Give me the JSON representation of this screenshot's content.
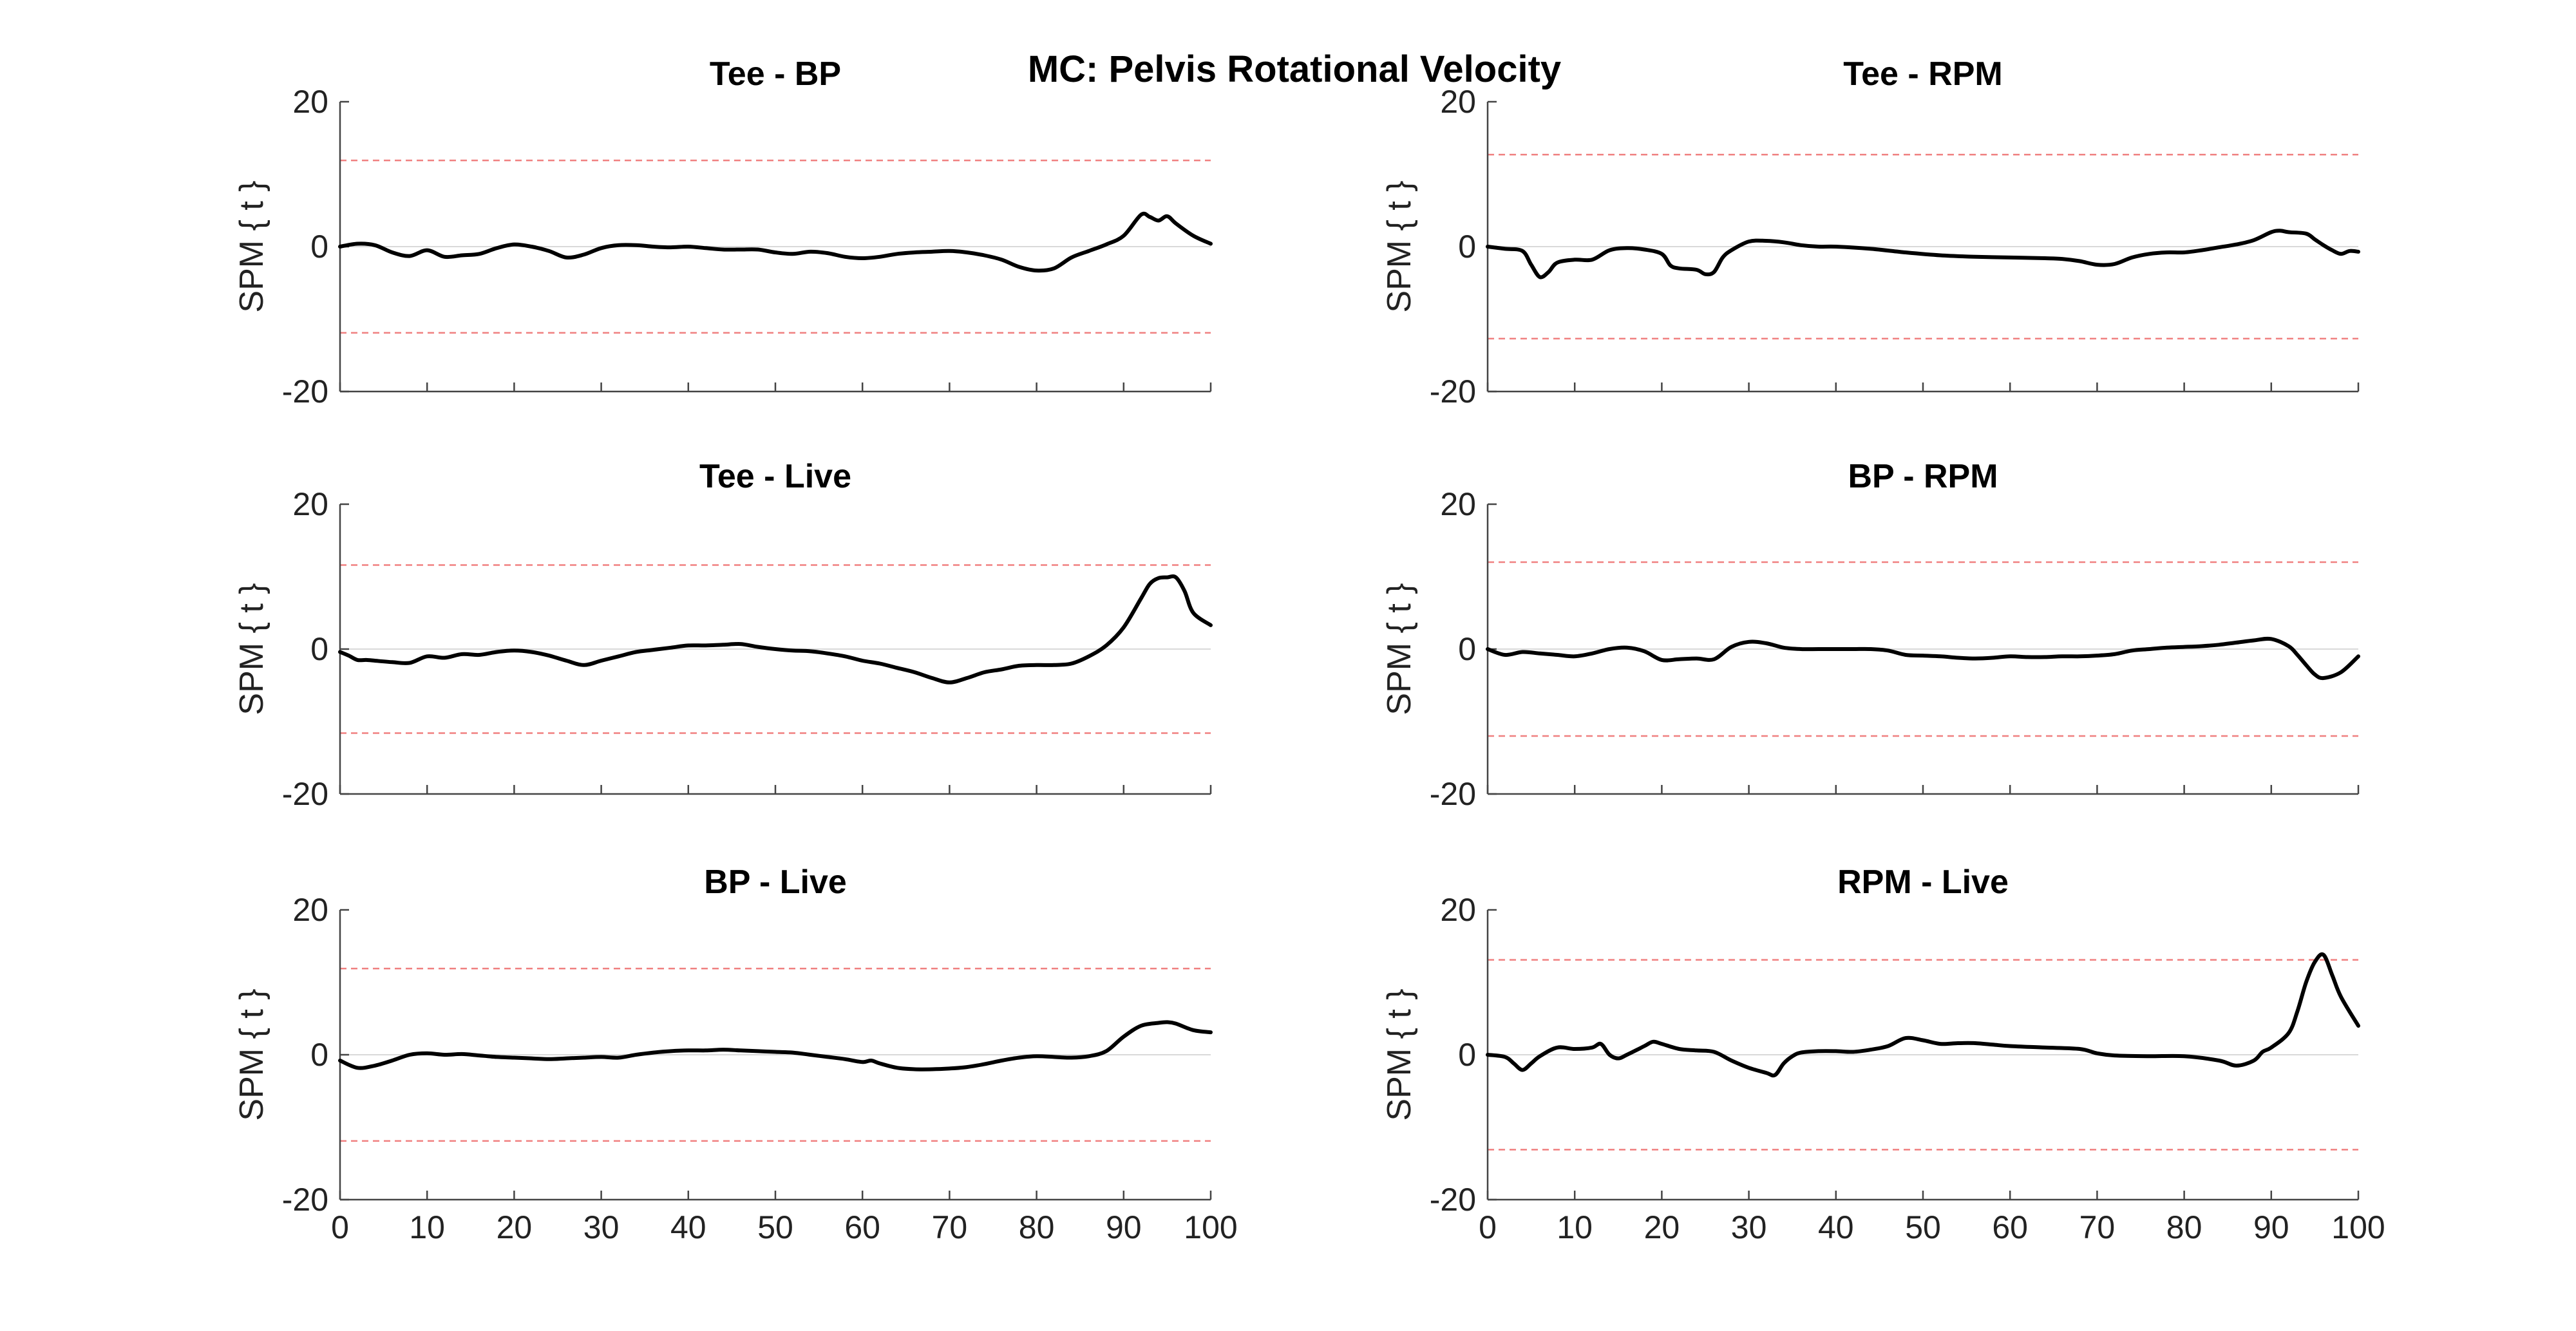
{
  "figure_title": "MC: Pelvis Rotational Velocity",
  "chart_data": [
    {
      "type": "line",
      "title": "Tee - BP",
      "ylabel": "SPM { t }",
      "xlim": [
        0,
        100
      ],
      "ylim": [
        -20,
        20
      ],
      "yticks": [
        -20,
        0,
        20
      ],
      "xticks": [
        0,
        10,
        20,
        30,
        40,
        50,
        60,
        70,
        80,
        90,
        100
      ],
      "show_xtick_labels": false,
      "threshold_upper": 11.9,
      "threshold_lower": -11.9,
      "series": [
        {
          "x": [
            0,
            2,
            4,
            6,
            8,
            10,
            12,
            14,
            16,
            18,
            20,
            22,
            24,
            26,
            28,
            30,
            32,
            34,
            36,
            38,
            40,
            42,
            44,
            46,
            48,
            50,
            52,
            54,
            56,
            58,
            60,
            62,
            64,
            66,
            68,
            70,
            72,
            74,
            76,
            78,
            80,
            82,
            84,
            86,
            88,
            90,
            92,
            93,
            94,
            95,
            96,
            98,
            100
          ],
          "y": [
            0,
            0.4,
            0.2,
            -0.8,
            -1.3,
            -0.5,
            -1.4,
            -1.2,
            -1,
            -0.2,
            0.3,
            0,
            -0.6,
            -1.5,
            -1.1,
            -0.2,
            0.2,
            0.2,
            0,
            -0.1,
            0,
            -0.2,
            -0.4,
            -0.4,
            -0.4,
            -0.8,
            -1,
            -0.7,
            -0.9,
            -1.4,
            -1.6,
            -1.4,
            -1,
            -0.8,
            -0.7,
            -0.6,
            -0.8,
            -1.2,
            -1.8,
            -2.8,
            -3.3,
            -3,
            -1.5,
            -0.6,
            0.3,
            1.5,
            4.4,
            4.1,
            3.6,
            4.2,
            3.2,
            1.5,
            0.4
          ]
        }
      ]
    },
    {
      "type": "line",
      "title": "Tee - RPM",
      "ylabel": "SPM { t }",
      "xlim": [
        0,
        100
      ],
      "ylim": [
        -20,
        20
      ],
      "yticks": [
        -20,
        0,
        20
      ],
      "xticks": [
        0,
        10,
        20,
        30,
        40,
        50,
        60,
        70,
        80,
        90,
        100
      ],
      "show_xtick_labels": false,
      "threshold_upper": 12.7,
      "threshold_lower": -12.7,
      "series": [
        {
          "x": [
            0,
            2,
            4,
            5,
            6,
            7,
            8,
            10,
            12,
            14,
            16,
            18,
            20,
            21,
            22,
            24,
            25,
            26,
            27,
            28,
            30,
            32,
            34,
            36,
            38,
            40,
            44,
            48,
            52,
            56,
            60,
            64,
            66,
            68,
            70,
            72,
            74,
            76,
            78,
            80,
            82,
            84,
            86,
            88,
            90,
            91,
            92,
            94,
            95,
            96,
            97,
            98,
            99,
            100
          ],
          "y": [
            0,
            -0.3,
            -0.6,
            -2.5,
            -4.2,
            -3.5,
            -2.2,
            -1.8,
            -1.8,
            -0.5,
            -0.2,
            -0.4,
            -1,
            -2.6,
            -3,
            -3.2,
            -3.8,
            -3.5,
            -1.5,
            -0.5,
            0.7,
            0.8,
            0.6,
            0.2,
            0,
            0,
            -0.3,
            -0.8,
            -1.2,
            -1.4,
            -1.5,
            -1.6,
            -1.7,
            -2,
            -2.5,
            -2.4,
            -1.5,
            -1,
            -0.8,
            -0.8,
            -0.5,
            -0.1,
            0.3,
            0.9,
            2,
            2.2,
            2,
            1.8,
            1,
            0.2,
            -0.5,
            -1,
            -0.6,
            -0.7
          ]
        }
      ]
    },
    {
      "type": "line",
      "title": "Tee - Live",
      "ylabel": "SPM { t }",
      "xlim": [
        0,
        100
      ],
      "ylim": [
        -20,
        20
      ],
      "yticks": [
        -20,
        0,
        20
      ],
      "xticks": [
        0,
        10,
        20,
        30,
        40,
        50,
        60,
        70,
        80,
        90,
        100
      ],
      "show_xtick_labels": false,
      "threshold_upper": 11.6,
      "threshold_lower": -11.6,
      "series": [
        {
          "x": [
            0,
            1,
            2,
            3,
            4,
            6,
            8,
            10,
            12,
            14,
            16,
            18,
            20,
            22,
            24,
            26,
            28,
            30,
            32,
            34,
            36,
            38,
            40,
            42,
            44,
            46,
            48,
            50,
            52,
            54,
            56,
            58,
            60,
            62,
            64,
            66,
            68,
            70,
            72,
            74,
            76,
            78,
            80,
            82,
            84,
            86,
            88,
            90,
            92,
            93,
            94,
            95,
            96,
            97,
            98,
            100
          ],
          "y": [
            -0.4,
            -0.9,
            -1.5,
            -1.5,
            -1.6,
            -1.8,
            -1.9,
            -1,
            -1.2,
            -0.7,
            -0.8,
            -0.4,
            -0.2,
            -0.4,
            -0.9,
            -1.6,
            -2.2,
            -1.6,
            -1,
            -0.4,
            -0.1,
            0.2,
            0.5,
            0.5,
            0.6,
            0.7,
            0.3,
            0,
            -0.2,
            -0.3,
            -0.6,
            -1,
            -1.6,
            -2,
            -2.6,
            -3.2,
            -4,
            -4.6,
            -4,
            -3.2,
            -2.8,
            -2.3,
            -2.2,
            -2.2,
            -2,
            -1,
            0.5,
            3,
            7,
            9,
            9.8,
            9.9,
            9.9,
            8,
            5,
            3.3
          ]
        }
      ]
    },
    {
      "type": "line",
      "title": "BP - RPM",
      "ylabel": "SPM { t }",
      "xlim": [
        0,
        100
      ],
      "ylim": [
        -20,
        20
      ],
      "yticks": [
        -20,
        0,
        20
      ],
      "xticks": [
        0,
        10,
        20,
        30,
        40,
        50,
        60,
        70,
        80,
        90,
        100
      ],
      "show_xtick_labels": false,
      "threshold_upper": 12,
      "threshold_lower": -12,
      "series": [
        {
          "x": [
            0,
            2,
            4,
            6,
            8,
            10,
            12,
            14,
            16,
            18,
            20,
            22,
            24,
            26,
            28,
            30,
            32,
            34,
            36,
            38,
            40,
            42,
            44,
            46,
            48,
            50,
            52,
            54,
            56,
            58,
            60,
            62,
            64,
            66,
            68,
            70,
            72,
            74,
            76,
            78,
            80,
            82,
            84,
            86,
            88,
            90,
            92,
            93,
            94,
            95,
            96,
            98,
            100
          ],
          "y": [
            0,
            -0.8,
            -0.4,
            -0.6,
            -0.8,
            -1,
            -0.6,
            0,
            0.2,
            -0.3,
            -1.5,
            -1.4,
            -1.3,
            -1.4,
            0.3,
            1,
            0.8,
            0.2,
            0,
            0,
            0,
            0,
            0,
            -0.2,
            -0.8,
            -0.9,
            -1,
            -1.2,
            -1.3,
            -1.2,
            -1,
            -1.1,
            -1.1,
            -1,
            -1,
            -0.9,
            -0.7,
            -0.2,
            0,
            0.2,
            0.3,
            0.4,
            0.6,
            0.9,
            1.2,
            1.4,
            0.4,
            -0.8,
            -2.2,
            -3.5,
            -4,
            -3.2,
            -1
          ]
        }
      ]
    },
    {
      "type": "line",
      "title": "BP - Live",
      "ylabel": "SPM { t }",
      "xlabel": "",
      "xlim": [
        0,
        100
      ],
      "ylim": [
        -20,
        20
      ],
      "yticks": [
        -20,
        0,
        20
      ],
      "xticks": [
        0,
        10,
        20,
        30,
        40,
        50,
        60,
        70,
        80,
        90,
        100
      ],
      "show_xtick_labels": true,
      "threshold_upper": 11.9,
      "threshold_lower": -11.9,
      "series": [
        {
          "x": [
            0,
            2,
            4,
            6,
            8,
            10,
            12,
            14,
            16,
            18,
            20,
            22,
            24,
            26,
            28,
            30,
            32,
            34,
            36,
            38,
            40,
            42,
            44,
            46,
            48,
            50,
            52,
            54,
            56,
            58,
            60,
            61,
            62,
            64,
            66,
            68,
            70,
            72,
            74,
            76,
            78,
            80,
            82,
            84,
            86,
            88,
            90,
            92,
            94,
            95,
            96,
            98,
            100
          ],
          "y": [
            -0.8,
            -1.8,
            -1.5,
            -0.8,
            0,
            0.2,
            0,
            0.1,
            -0.1,
            -0.3,
            -0.4,
            -0.5,
            -0.6,
            -0.5,
            -0.4,
            -0.3,
            -0.4,
            0,
            0.3,
            0.5,
            0.6,
            0.6,
            0.7,
            0.6,
            0.5,
            0.4,
            0.3,
            0,
            -0.3,
            -0.6,
            -1,
            -0.8,
            -1.2,
            -1.8,
            -2,
            -2,
            -1.9,
            -1.7,
            -1.3,
            -0.8,
            -0.4,
            -0.2,
            -0.3,
            -0.4,
            -0.2,
            0.5,
            2.5,
            4,
            4.4,
            4.5,
            4.3,
            3.4,
            3.1
          ]
        }
      ]
    },
    {
      "type": "line",
      "title": "RPM - Live",
      "ylabel": "SPM { t }",
      "xlabel": "",
      "xlim": [
        0,
        100
      ],
      "ylim": [
        -20,
        20
      ],
      "yticks": [
        -20,
        0,
        20
      ],
      "xticks": [
        0,
        10,
        20,
        30,
        40,
        50,
        60,
        70,
        80,
        90,
        100
      ],
      "show_xtick_labels": true,
      "threshold_upper": 13.1,
      "threshold_lower": -13.1,
      "series": [
        {
          "x": [
            0,
            2,
            3,
            4,
            5,
            6,
            8,
            10,
            12,
            13,
            14,
            15,
            16,
            18,
            19,
            20,
            22,
            24,
            26,
            28,
            30,
            32,
            33,
            34,
            35,
            36,
            38,
            40,
            42,
            44,
            46,
            48,
            50,
            52,
            54,
            56,
            58,
            60,
            64,
            68,
            70,
            72,
            76,
            80,
            84,
            86,
            88,
            89,
            90,
            92,
            93,
            94,
            95,
            96,
            97,
            98,
            100
          ],
          "y": [
            0,
            -0.3,
            -1.2,
            -2.1,
            -1.2,
            -0.2,
            1,
            0.8,
            1,
            1.5,
            0,
            -0.5,
            0,
            1.2,
            1.8,
            1.5,
            0.8,
            0.6,
            0.4,
            -0.8,
            -1.8,
            -2.5,
            -2.8,
            -1.2,
            -0.2,
            0.3,
            0.5,
            0.5,
            0.4,
            0.7,
            1.2,
            2.3,
            2,
            1.5,
            1.6,
            1.6,
            1.4,
            1.2,
            1,
            0.8,
            0.2,
            -0.1,
            -0.2,
            -0.2,
            -0.8,
            -1.5,
            -0.8,
            0.4,
            1,
            3,
            6,
            10,
            12.8,
            13.8,
            11,
            8,
            4
          ]
        }
      ]
    }
  ]
}
